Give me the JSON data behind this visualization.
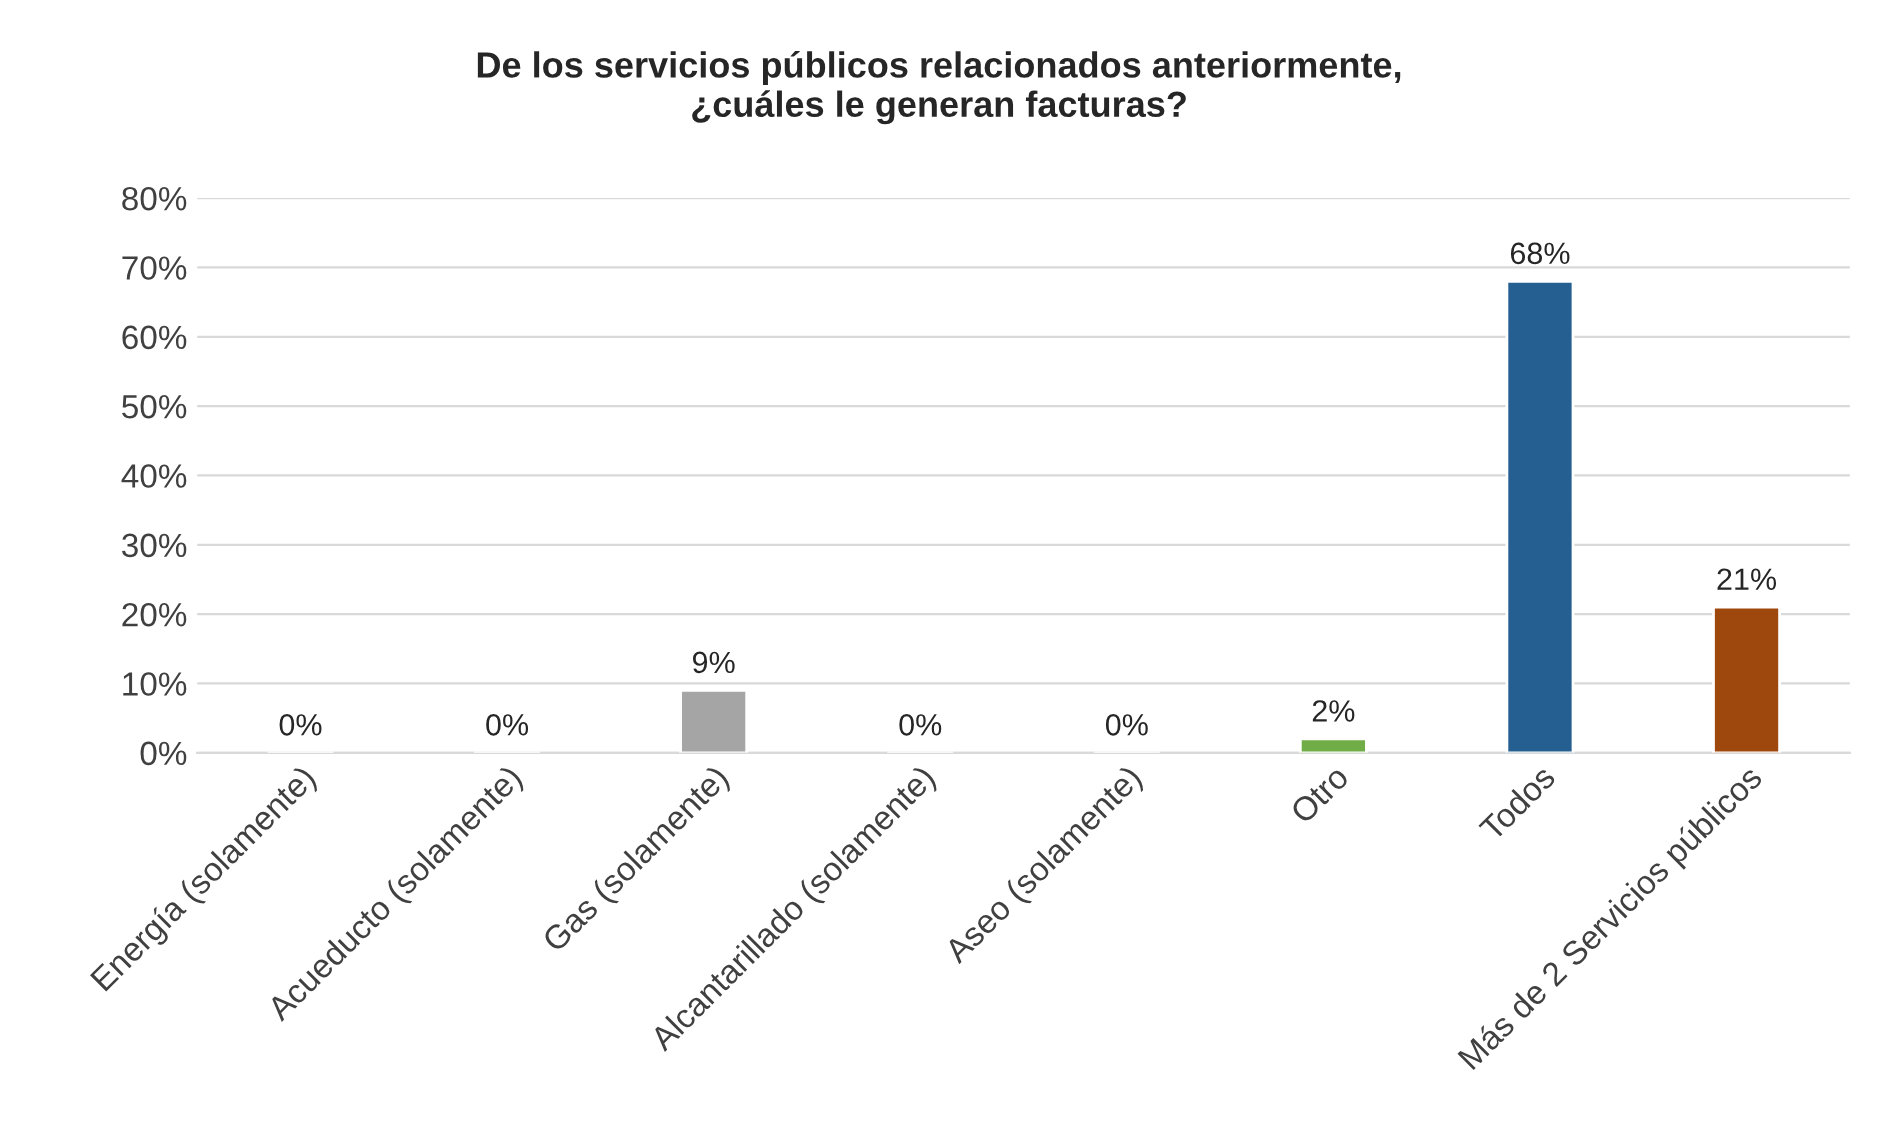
{
  "chart_data": {
    "type": "bar",
    "title": "De los servicios públicos relacionados anteriormente,\n¿cuáles le generan facturas?",
    "categories": [
      "Energía (solamente)",
      "Acueducto (solamente)",
      "Gas (solamente)",
      "Alcantarillado (solamente)",
      "Aseo (solamente)",
      "Otro",
      "Todos",
      "Más de 2 Servicios públicos"
    ],
    "values": [
      0,
      0,
      9,
      0,
      0,
      2,
      68,
      21
    ],
    "colors": [
      null,
      null,
      "#a5a5a5",
      null,
      null,
      "#70ad47",
      "#255e91",
      "#9e480e"
    ],
    "value_labels": [
      "0%",
      "0%",
      "9%",
      "0%",
      "0%",
      "2%",
      "68%",
      "21%"
    ],
    "ylim": [
      0,
      80
    ],
    "yticks": [
      {
        "value": 0,
        "label": "0%"
      },
      {
        "value": 10,
        "label": "10%"
      },
      {
        "value": 20,
        "label": "20%"
      },
      {
        "value": 30,
        "label": "30%"
      },
      {
        "value": 40,
        "label": "40%"
      },
      {
        "value": 50,
        "label": "50%"
      },
      {
        "value": 60,
        "label": "60%"
      },
      {
        "value": 70,
        "label": "70%"
      },
      {
        "value": 80,
        "label": "80%"
      }
    ],
    "grid": "y",
    "legend": false
  }
}
